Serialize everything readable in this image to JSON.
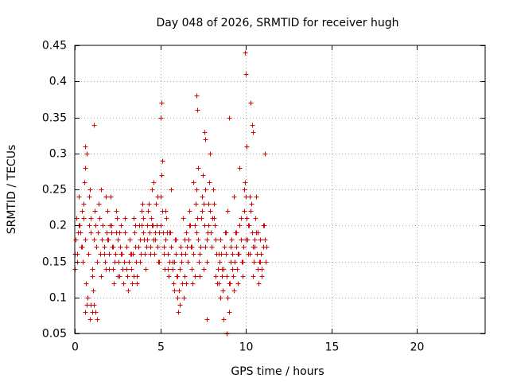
{
  "chart_data": {
    "type": "scatter",
    "title": "Day 048 of 2026, SRMTID for receiver hugh",
    "xlabel": "GPS time / hours",
    "ylabel": "SRMTID / TECUs",
    "xlim": [
      0,
      24
    ],
    "ylim": [
      0.05,
      0.45
    ],
    "xticks": [
      0,
      5,
      10,
      15,
      20
    ],
    "xtick_labels": [
      "0",
      "5",
      "10",
      "15",
      "20"
    ],
    "yticks": [
      0.05,
      0.1,
      0.15,
      0.2,
      0.25,
      0.3,
      0.35,
      0.4,
      0.45
    ],
    "ytick_labels": [
      "0.05",
      "0.1",
      "0.15",
      "0.2",
      "0.25",
      "0.3",
      "0.35",
      "0.4",
      "0.45"
    ],
    "grid": true,
    "marker": "plus",
    "series": [
      {
        "name": "SRMTID",
        "color": "#dd0000",
        "x": [
          0.0,
          0.05,
          0.1,
          0.15,
          0.2,
          0.25,
          0.3,
          0.35,
          0.4,
          0.45,
          0.5,
          0.55,
          0.6,
          0.65,
          0.7,
          0.75,
          0.8,
          0.85,
          0.9,
          0.95,
          1.0,
          1.05,
          1.1,
          1.15,
          1.2,
          1.25,
          1.3,
          1.35,
          1.4,
          1.45,
          1.5,
          1.55,
          1.6,
          1.65,
          1.7,
          1.75,
          1.8,
          1.85,
          1.9,
          1.95,
          2.0,
          2.05,
          2.1,
          2.15,
          2.2,
          2.25,
          2.3,
          2.35,
          2.4,
          2.45,
          2.5,
          2.55,
          2.6,
          2.65,
          2.7,
          2.75,
          2.8,
          2.85,
          2.9,
          2.95,
          3.0,
          3.05,
          3.1,
          3.15,
          3.2,
          3.25,
          3.3,
          3.35,
          3.4,
          3.45,
          3.5,
          3.55,
          3.6,
          3.65,
          3.7,
          3.75,
          3.8,
          3.85,
          3.9,
          3.95,
          4.0,
          4.05,
          4.1,
          4.15,
          4.2,
          4.25,
          4.3,
          4.35,
          4.4,
          4.45,
          4.5,
          4.55,
          4.6,
          4.65,
          4.7,
          4.75,
          4.8,
          4.85,
          4.9,
          4.95,
          5.0,
          5.05,
          5.1,
          5.15,
          5.2,
          5.25,
          5.3,
          5.35,
          5.4,
          5.45,
          5.5,
          5.55,
          5.6,
          5.65,
          5.7,
          5.75,
          5.8,
          5.85,
          5.9,
          5.95,
          6.0,
          6.05,
          6.1,
          6.15,
          6.2,
          6.25,
          6.3,
          6.35,
          6.4,
          6.45,
          6.5,
          6.55,
          6.6,
          6.65,
          6.7,
          6.75,
          6.8,
          6.85,
          6.9,
          6.95,
          7.0,
          7.05,
          7.1,
          7.15,
          7.2,
          7.25,
          7.3,
          7.35,
          7.4,
          7.45,
          7.5,
          7.55,
          7.6,
          7.65,
          7.7,
          7.75,
          7.8,
          7.85,
          7.9,
          7.95,
          8.0,
          8.05,
          8.1,
          8.15,
          8.2,
          8.25,
          8.3,
          8.35,
          8.4,
          8.45,
          8.5,
          8.55,
          8.6,
          8.65,
          8.7,
          8.75,
          8.8,
          8.85,
          8.9,
          8.95,
          9.0,
          9.05,
          9.1,
          9.15,
          9.2,
          9.25,
          9.3,
          9.35,
          9.4,
          9.45,
          9.5,
          9.55,
          9.6,
          9.65,
          9.7,
          9.75,
          9.8,
          9.85,
          9.9,
          9.95,
          10.0,
          10.05,
          10.1,
          10.15,
          10.2,
          10.25,
          10.3,
          10.35,
          10.4,
          10.45,
          10.5,
          10.55,
          10.6,
          10.65,
          10.7,
          10.75,
          10.8,
          10.85,
          10.9,
          10.95,
          11.0,
          11.05,
          11.1,
          11.15,
          11.2,
          0.02,
          0.12,
          0.22,
          0.32,
          0.42,
          0.52,
          0.62,
          0.72,
          0.82,
          0.92,
          1.02,
          1.12,
          1.22,
          1.32,
          1.42,
          1.52,
          1.62,
          1.72,
          1.82,
          1.92,
          2.02,
          2.12,
          2.22,
          2.32,
          2.42,
          2.52,
          2.62,
          2.72,
          2.82,
          2.92,
          3.02,
          3.12,
          3.22,
          3.32,
          3.42,
          3.52,
          3.62,
          3.72,
          3.82,
          3.92,
          4.02,
          4.12,
          4.22,
          4.32,
          4.42,
          4.52,
          4.62,
          4.72,
          4.82,
          4.92,
          5.02,
          5.12,
          5.22,
          5.32,
          5.42,
          5.52,
          5.62,
          5.72,
          5.82,
          5.92,
          6.02,
          6.12,
          6.22,
          6.32,
          6.42,
          6.52,
          6.62,
          6.72,
          6.82,
          6.92,
          7.02,
          7.12,
          7.22,
          7.32,
          7.42,
          7.52,
          7.62,
          7.72,
          7.82,
          7.92,
          8.02,
          8.12,
          8.22,
          8.32,
          8.42,
          8.52,
          8.62,
          8.72,
          8.82,
          8.92,
          9.02,
          9.12,
          9.22,
          9.32,
          9.42,
          9.52,
          9.62,
          9.72,
          9.82,
          9.92,
          10.02,
          10.12,
          10.22,
          10.32,
          10.42,
          10.52,
          10.62,
          10.72,
          10.82,
          10.92,
          11.02,
          11.12,
          0.6,
          0.62,
          0.9,
          0.95,
          1.0,
          1.1,
          5.0,
          5.05,
          7.1,
          7.15,
          7.6,
          7.65,
          7.7,
          8.9,
          9.0,
          9.95,
          10.0,
          10.05,
          10.3,
          10.35,
          10.4
        ],
        "y": [
          0.14,
          0.18,
          0.21,
          0.16,
          0.19,
          0.24,
          0.2,
          0.17,
          0.22,
          0.15,
          0.21,
          0.26,
          0.18,
          0.12,
          0.09,
          0.1,
          0.16,
          0.2,
          0.25,
          0.19,
          0.14,
          0.11,
          0.18,
          0.22,
          0.2,
          0.17,
          0.15,
          0.19,
          0.23,
          0.21,
          0.16,
          0.13,
          0.18,
          0.2,
          0.17,
          0.15,
          0.14,
          0.19,
          0.22,
          0.18,
          0.16,
          0.2,
          0.24,
          0.19,
          0.17,
          0.14,
          0.12,
          0.16,
          0.19,
          0.21,
          0.18,
          0.15,
          0.13,
          0.17,
          0.2,
          0.16,
          0.14,
          0.12,
          0.15,
          0.19,
          0.17,
          0.13,
          0.11,
          0.15,
          0.18,
          0.16,
          0.14,
          0.12,
          0.16,
          0.21,
          0.19,
          0.17,
          0.15,
          0.13,
          0.17,
          0.2,
          0.18,
          0.16,
          0.2,
          0.23,
          0.21,
          0.18,
          0.16,
          0.14,
          0.17,
          0.2,
          0.22,
          0.19,
          0.17,
          0.21,
          0.25,
          0.2,
          0.18,
          0.16,
          0.19,
          0.23,
          0.2,
          0.17,
          0.15,
          0.19,
          0.24,
          0.27,
          0.22,
          0.19,
          0.16,
          0.14,
          0.18,
          0.21,
          0.19,
          0.16,
          0.13,
          0.15,
          0.19,
          0.17,
          0.14,
          0.12,
          0.15,
          0.18,
          0.16,
          0.13,
          0.1,
          0.08,
          0.11,
          0.14,
          0.17,
          0.15,
          0.12,
          0.1,
          0.13,
          0.16,
          0.19,
          0.17,
          0.15,
          0.18,
          0.22,
          0.2,
          0.17,
          0.14,
          0.12,
          0.16,
          0.2,
          0.23,
          0.25,
          0.21,
          0.18,
          0.15,
          0.13,
          0.17,
          0.21,
          0.24,
          0.27,
          0.23,
          0.2,
          0.17,
          0.15,
          0.19,
          0.23,
          0.26,
          0.22,
          0.19,
          0.17,
          0.21,
          0.25,
          0.23,
          0.2,
          0.18,
          0.16,
          0.14,
          0.12,
          0.15,
          0.18,
          0.16,
          0.13,
          0.11,
          0.14,
          0.17,
          0.19,
          0.16,
          0.13,
          0.1,
          0.08,
          0.12,
          0.15,
          0.18,
          0.16,
          0.13,
          0.11,
          0.15,
          0.19,
          0.17,
          0.14,
          0.12,
          0.16,
          0.2,
          0.18,
          0.15,
          0.13,
          0.17,
          0.22,
          0.26,
          0.24,
          0.21,
          0.18,
          0.16,
          0.2,
          0.24,
          0.22,
          0.19,
          0.17,
          0.15,
          0.18,
          0.21,
          0.19,
          0.16,
          0.14,
          0.12,
          0.15,
          0.18,
          0.16,
          0.14,
          0.17,
          0.2,
          0.18,
          0.15,
          0.17,
          0.16,
          0.15,
          0.2,
          0.19,
          0.17,
          0.23,
          0.28,
          0.3,
          0.24,
          0.21,
          0.13,
          0.09,
          0.08,
          0.07,
          0.21,
          0.25,
          0.2,
          0.16,
          0.24,
          0.18,
          0.14,
          0.2,
          0.17,
          0.15,
          0.22,
          0.13,
          0.19,
          0.16,
          0.12,
          0.21,
          0.14,
          0.11,
          0.18,
          0.16,
          0.13,
          0.2,
          0.12,
          0.17,
          0.15,
          0.22,
          0.19,
          0.14,
          0.18,
          0.23,
          0.16,
          0.2,
          0.26,
          0.18,
          0.24,
          0.15,
          0.2,
          0.29,
          0.17,
          0.22,
          0.14,
          0.19,
          0.25,
          0.15,
          0.11,
          0.18,
          0.13,
          0.09,
          0.16,
          0.21,
          0.18,
          0.12,
          0.15,
          0.2,
          0.17,
          0.26,
          0.13,
          0.19,
          0.28,
          0.16,
          0.22,
          0.14,
          0.25,
          0.18,
          0.2,
          0.3,
          0.17,
          0.21,
          0.13,
          0.12,
          0.16,
          0.1,
          0.14,
          0.07,
          0.19,
          0.22,
          0.12,
          0.17,
          0.14,
          0.24,
          0.19,
          0.16,
          0.28,
          0.21,
          0.15,
          0.25,
          0.18,
          0.2,
          0.16,
          0.23,
          0.13,
          0.17,
          0.24,
          0.19,
          0.15,
          0.13,
          0.2,
          0.3,
          0.31,
          0.08,
          0.07,
          0.09,
          0.08,
          0.34,
          0.35,
          0.37,
          0.38,
          0.36,
          0.33,
          0.32,
          0.07,
          0.05,
          0.35,
          0.44,
          0.41,
          0.31,
          0.37,
          0.34,
          0.33
        ]
      }
    ]
  }
}
